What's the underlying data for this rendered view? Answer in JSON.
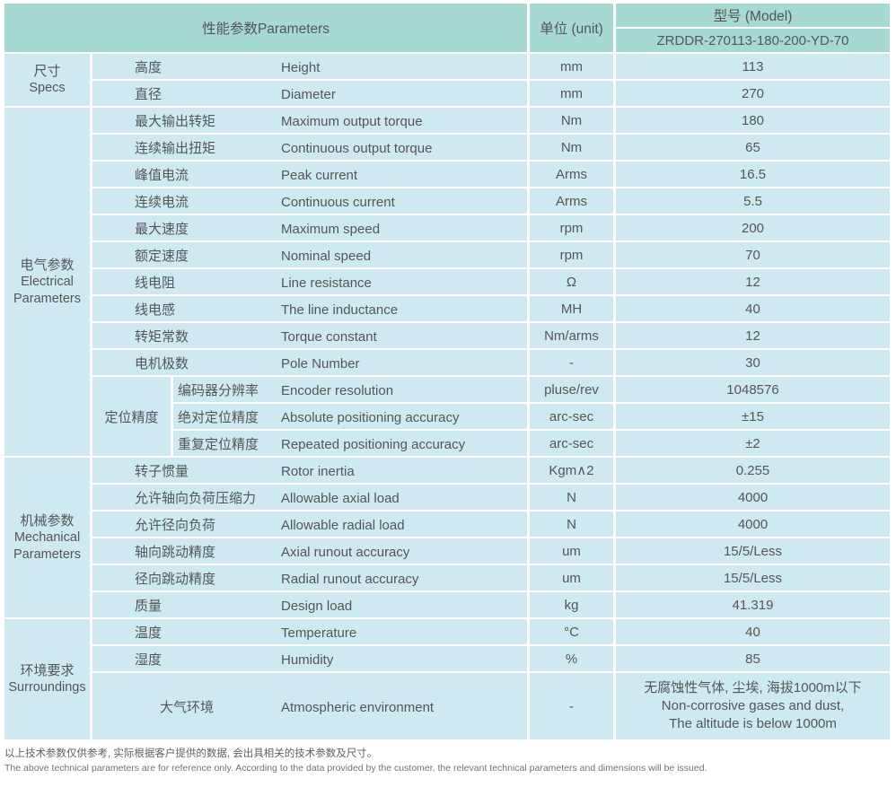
{
  "colors": {
    "header_bg": "#a6d9d1",
    "row_bg": "#cee9f1",
    "text": "#54565a",
    "divider": "#ffffff"
  },
  "header": {
    "parameters_label": "性能参数Parameters",
    "unit_label": "单位 (unit)",
    "model_label": "型号 (Model)",
    "model_value": "ZRDDR-270113-180-200-YD-70"
  },
  "groups": [
    {
      "zh": "尺寸",
      "en": "Specs"
    },
    {
      "zh": "电气参数",
      "en": "Electrical Parameters"
    },
    {
      "zh": "机械参数",
      "en": "Mechanical Parameters"
    },
    {
      "zh": "环境要求",
      "en": "Surroundings"
    }
  ],
  "subgroup": {
    "zh": "定位精度"
  },
  "rows": [
    {
      "zh": "高度",
      "en": "Height",
      "unit": "mm",
      "value": "113"
    },
    {
      "zh": "直径",
      "en": "Diameter",
      "unit": "mm",
      "value": "270"
    },
    {
      "zh": "最大输出转矩",
      "en": "Maximum output torque",
      "unit": "Nm",
      "value": "180"
    },
    {
      "zh": "连续输出扭矩",
      "en": "Continuous output torque",
      "unit": "Nm",
      "value": "65"
    },
    {
      "zh": "峰值电流",
      "en": "Peak current",
      "unit": "Arms",
      "value": "16.5"
    },
    {
      "zh": "连续电流",
      "en": "Continuous current",
      "unit": "Arms",
      "value": "5.5"
    },
    {
      "zh": "最大速度",
      "en": "Maximum speed",
      "unit": "rpm",
      "value": "200"
    },
    {
      "zh": "额定速度",
      "en": "Nominal speed",
      "unit": "rpm",
      "value": "70"
    },
    {
      "zh": "线电阻",
      "en": "Line resistance",
      "unit": "Ω",
      "value": "12"
    },
    {
      "zh": "线电感",
      "en": "The line inductance",
      "unit": "MH",
      "value": "40"
    },
    {
      "zh": "转矩常数",
      "en": "Torque constant",
      "unit": "Nm/arms",
      "value": "12"
    },
    {
      "zh": "电机极数",
      "en": "Pole Number",
      "unit": "-",
      "value": "30"
    },
    {
      "zh": "编码器分辨率",
      "en": "Encoder resolution",
      "unit": "pluse/rev",
      "value": "1048576"
    },
    {
      "zh": "绝对定位精度",
      "en": "Absolute positioning accuracy",
      "unit": "arc-sec",
      "value": "±15"
    },
    {
      "zh": "重复定位精度",
      "en": "Repeated positioning accuracy",
      "unit": "arc-sec",
      "value": "±2"
    },
    {
      "zh": "转子惯量",
      "en": "Rotor inertia",
      "unit": "Kgm∧2",
      "value": "0.255"
    },
    {
      "zh": "允许轴向负荷压缩力",
      "en": "Allowable axial load",
      "unit": "N",
      "value": "4000"
    },
    {
      "zh": "允许径向负荷",
      "en": "Allowable radial load",
      "unit": "N",
      "value": "4000"
    },
    {
      "zh": "轴向跳动精度",
      "en": "Axial runout accuracy",
      "unit": "um",
      "value": "15/5/Less"
    },
    {
      "zh": "径向跳动精度",
      "en": "Radial runout accuracy",
      "unit": "um",
      "value": "15/5/Less"
    },
    {
      "zh": "质量",
      "en": "Design load",
      "unit": "kg",
      "value": "41.319"
    },
    {
      "zh": "温度",
      "en": "Temperature",
      "unit": "°C",
      "value": "40"
    },
    {
      "zh": "湿度",
      "en": "Humidity",
      "unit": "%",
      "value": "85"
    },
    {
      "zh": "大气环境",
      "en": "Atmospheric environment",
      "unit": "-",
      "value_l1": "无腐蚀性气体, 尘埃, 海拔1000m以下",
      "value_l2": "Non-corrosive gases and dust,",
      "value_l3": "The altitude is below 1000m"
    }
  ],
  "footer": {
    "note_zh": "以上技术参数仅供参考, 实际根据客户提供的数据, 会出具相关的技术参数及尺寸。",
    "note_en": "The above technical parameters are for reference only. According to the data provided by the customer, the relevant technical parameters and dimensions will be issued."
  }
}
